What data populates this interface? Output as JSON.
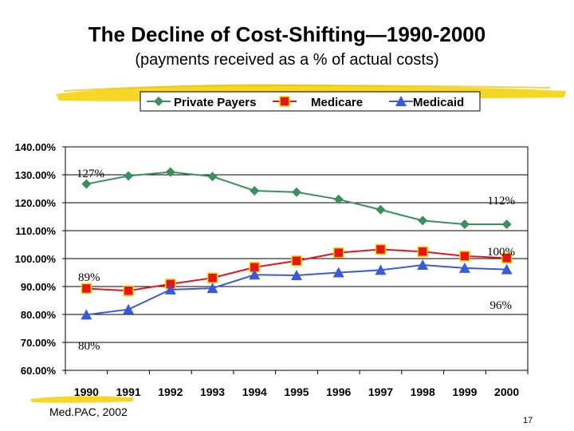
{
  "title": "The Decline of Cost-Shifting—1990-2000",
  "subtitle": "(payments received as a % of actual costs)",
  "source": "Med.PAC, 2002",
  "page_number": "17",
  "chart_data": {
    "type": "line",
    "x": [
      "1990",
      "1991",
      "1992",
      "1993",
      "1994",
      "1995",
      "1996",
      "1997",
      "1998",
      "1999",
      "2000"
    ],
    "ylim": [
      60,
      140
    ],
    "yticks": [
      "60.00%",
      "70.00%",
      "80.00%",
      "90.00%",
      "100.00%",
      "110.00%",
      "120.00%",
      "130.00%",
      "140.00%"
    ],
    "grid": true,
    "legend_position": "top",
    "series": [
      {
        "name": "Private Payers",
        "color": "#3a8f5c",
        "marker": "diamond",
        "values": [
          126.7,
          129.6,
          131.0,
          129.4,
          124.3,
          123.8,
          121.2,
          117.5,
          113.6,
          112.3,
          112.3
        ]
      },
      {
        "name": "Medicare",
        "color": "#e8141b",
        "marker": "square",
        "values": [
          89.3,
          88.5,
          90.9,
          93.1,
          96.9,
          99.2,
          102.1,
          103.3,
          102.5,
          100.9,
          100.2
        ]
      },
      {
        "name": "Medicaid",
        "color": "#3b5bd6",
        "marker": "triangle",
        "values": [
          79.9,
          81.8,
          88.9,
          89.4,
          94.2,
          94.0,
          95.0,
          95.9,
          97.7,
          96.6,
          96.1
        ]
      }
    ],
    "annotations": [
      "127%",
      "112%",
      "100%",
      "89%",
      "96%",
      "80%"
    ]
  }
}
